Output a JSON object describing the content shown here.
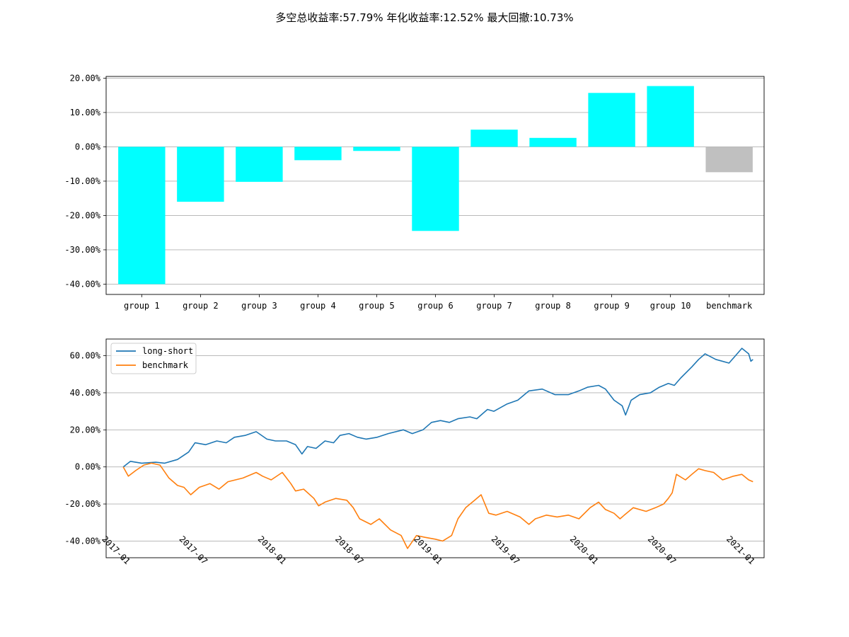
{
  "suptitle": "多空总收益率:57.79%    年化收益率:12.52%    最大回撤:10.73%",
  "chart_data": [
    {
      "type": "bar",
      "categories": [
        "group 1",
        "group 2",
        "group 3",
        "group 4",
        "group 5",
        "group 6",
        "group 7",
        "group 8",
        "group 9",
        "group 10",
        "benchmark"
      ],
      "values": [
        -40.0,
        -16.0,
        -10.2,
        -3.9,
        -1.2,
        -24.5,
        5.0,
        2.6,
        15.7,
        17.7,
        -7.4
      ],
      "colors": [
        "#00ffff",
        "#00ffff",
        "#00ffff",
        "#00ffff",
        "#00ffff",
        "#00ffff",
        "#00ffff",
        "#00ffff",
        "#00ffff",
        "#00ffff",
        "#c0c0c0"
      ],
      "ylim": [
        -43,
        20.5
      ],
      "yticks": [
        20,
        10,
        0,
        -10,
        -20,
        -30,
        -40
      ],
      "ytick_labels": [
        "20.00%",
        "10.00%",
        "0.00%",
        "-10.00%",
        "-20.00%",
        "-30.00%",
        "-40.00%"
      ],
      "grid": "y"
    },
    {
      "type": "line",
      "xlim": [
        "2016-11-24",
        "2021-02-10"
      ],
      "ylim": [
        -49,
        69
      ],
      "xticks": [
        "2017-01",
        "2017-07",
        "2018-01",
        "2018-07",
        "2019-01",
        "2019-07",
        "2020-01",
        "2020-07",
        "2021-01"
      ],
      "yticks": [
        60,
        40,
        20,
        0,
        -20,
        -40
      ],
      "ytick_labels": [
        "60.00%",
        "40.00%",
        "20.00%",
        "0.00%",
        "-20.00%",
        "-40.00%"
      ],
      "grid": "y",
      "legend": "upper-left",
      "series": [
        {
          "name": "long-short",
          "color": "#1f77b4",
          "points": [
            [
              "2017-01-03",
              0
            ],
            [
              "2017-01-20",
              3
            ],
            [
              "2017-02-15",
              2
            ],
            [
              "2017-03-20",
              2.5
            ],
            [
              "2017-04-10",
              2
            ],
            [
              "2017-05-10",
              4
            ],
            [
              "2017-06-05",
              8
            ],
            [
              "2017-06-20",
              13
            ],
            [
              "2017-07-15",
              12
            ],
            [
              "2017-08-10",
              14
            ],
            [
              "2017-09-01",
              13
            ],
            [
              "2017-09-20",
              16
            ],
            [
              "2017-10-15",
              17
            ],
            [
              "2017-11-10",
              19
            ],
            [
              "2017-12-05",
              15
            ],
            [
              "2017-12-25",
              14
            ],
            [
              "2018-01-20",
              14
            ],
            [
              "2018-02-10",
              12
            ],
            [
              "2018-02-25",
              7
            ],
            [
              "2018-03-10",
              11
            ],
            [
              "2018-03-30",
              10
            ],
            [
              "2018-04-20",
              14
            ],
            [
              "2018-05-10",
              13
            ],
            [
              "2018-05-25",
              17
            ],
            [
              "2018-06-15",
              18
            ],
            [
              "2018-07-05",
              16
            ],
            [
              "2018-07-25",
              15
            ],
            [
              "2018-08-20",
              16
            ],
            [
              "2018-09-15",
              18
            ],
            [
              "2018-10-20",
              20
            ],
            [
              "2018-11-10",
              18
            ],
            [
              "2018-12-05",
              20
            ],
            [
              "2018-12-25",
              24
            ],
            [
              "2019-01-15",
              25
            ],
            [
              "2019-02-05",
              24
            ],
            [
              "2019-02-25",
              26
            ],
            [
              "2019-03-25",
              27
            ],
            [
              "2019-04-10",
              26
            ],
            [
              "2019-05-05",
              31
            ],
            [
              "2019-05-20",
              30
            ],
            [
              "2019-06-20",
              34
            ],
            [
              "2019-07-15",
              36
            ],
            [
              "2019-08-10",
              41
            ],
            [
              "2019-09-10",
              42
            ],
            [
              "2019-10-10",
              39
            ],
            [
              "2019-11-10",
              39
            ],
            [
              "2019-12-05",
              41
            ],
            [
              "2019-12-25",
              43
            ],
            [
              "2020-01-20",
              44
            ],
            [
              "2020-02-05",
              42
            ],
            [
              "2020-02-25",
              36
            ],
            [
              "2020-03-15",
              33
            ],
            [
              "2020-03-23",
              28
            ],
            [
              "2020-04-05",
              36
            ],
            [
              "2020-04-25",
              39
            ],
            [
              "2020-05-20",
              40
            ],
            [
              "2020-06-10",
              43
            ],
            [
              "2020-07-01",
              45
            ],
            [
              "2020-07-15",
              44
            ],
            [
              "2020-07-30",
              48
            ],
            [
              "2020-08-25",
              54
            ],
            [
              "2020-09-10",
              58
            ],
            [
              "2020-09-25",
              61
            ],
            [
              "2020-10-20",
              58
            ],
            [
              "2020-11-20",
              56
            ],
            [
              "2020-12-05",
              60
            ],
            [
              "2020-12-20",
              64
            ],
            [
              "2021-01-05",
              61
            ],
            [
              "2021-01-10",
              57
            ],
            [
              "2021-01-15",
              58
            ]
          ]
        },
        {
          "name": "benchmark",
          "color": "#ff7f0e",
          "points": [
            [
              "2017-01-03",
              0
            ],
            [
              "2017-01-15",
              -5
            ],
            [
              "2017-02-01",
              -2
            ],
            [
              "2017-02-20",
              1
            ],
            [
              "2017-03-10",
              2
            ],
            [
              "2017-03-30",
              1
            ],
            [
              "2017-04-20",
              -6
            ],
            [
              "2017-05-10",
              -10
            ],
            [
              "2017-05-25",
              -11
            ],
            [
              "2017-06-10",
              -15
            ],
            [
              "2017-06-30",
              -11
            ],
            [
              "2017-07-25",
              -9
            ],
            [
              "2017-08-15",
              -12
            ],
            [
              "2017-09-05",
              -8
            ],
            [
              "2017-10-10",
              -6
            ],
            [
              "2017-11-10",
              -3
            ],
            [
              "2017-11-25",
              -5
            ],
            [
              "2017-12-15",
              -7
            ],
            [
              "2018-01-10",
              -3
            ],
            [
              "2018-01-30",
              -9
            ],
            [
              "2018-02-10",
              -13
            ],
            [
              "2018-03-01",
              -12
            ],
            [
              "2018-03-25",
              -17
            ],
            [
              "2018-04-05",
              -21
            ],
            [
              "2018-04-20",
              -19
            ],
            [
              "2018-05-15",
              -17
            ],
            [
              "2018-06-10",
              -18
            ],
            [
              "2018-06-25",
              -22
            ],
            [
              "2018-07-10",
              -28
            ],
            [
              "2018-08-05",
              -31
            ],
            [
              "2018-08-25",
              -28
            ],
            [
              "2018-09-20",
              -34
            ],
            [
              "2018-10-15",
              -37
            ],
            [
              "2018-10-30",
              -44
            ],
            [
              "2018-11-20",
              -37
            ],
            [
              "2018-12-10",
              -38
            ],
            [
              "2019-01-03",
              -39
            ],
            [
              "2019-01-20",
              -40
            ],
            [
              "2019-02-10",
              -37
            ],
            [
              "2019-02-25",
              -28
            ],
            [
              "2019-03-15",
              -22
            ],
            [
              "2019-04-05",
              -18
            ],
            [
              "2019-04-20",
              -15
            ],
            [
              "2019-05-08",
              -25
            ],
            [
              "2019-05-25",
              -26
            ],
            [
              "2019-06-20",
              -24
            ],
            [
              "2019-07-20",
              -27
            ],
            [
              "2019-08-10",
              -31
            ],
            [
              "2019-08-25",
              -28
            ],
            [
              "2019-09-20",
              -26
            ],
            [
              "2019-10-15",
              -27
            ],
            [
              "2019-11-10",
              -26
            ],
            [
              "2019-12-05",
              -28
            ],
            [
              "2019-12-31",
              -22
            ],
            [
              "2020-01-20",
              -19
            ],
            [
              "2020-02-05",
              -23
            ],
            [
              "2020-02-25",
              -25
            ],
            [
              "2020-03-10",
              -28
            ],
            [
              "2020-03-20",
              -26
            ],
            [
              "2020-04-10",
              -22
            ],
            [
              "2020-05-10",
              -24
            ],
            [
              "2020-06-01",
              -22
            ],
            [
              "2020-06-20",
              -20
            ],
            [
              "2020-07-01",
              -17
            ],
            [
              "2020-07-10",
              -14
            ],
            [
              "2020-07-20",
              -4
            ],
            [
              "2020-08-10",
              -7
            ],
            [
              "2020-08-25",
              -4
            ],
            [
              "2020-09-10",
              -1
            ],
            [
              "2020-09-25",
              -2
            ],
            [
              "2020-10-15",
              -3
            ],
            [
              "2020-11-05",
              -7
            ],
            [
              "2020-11-30",
              -5
            ],
            [
              "2020-12-20",
              -4
            ],
            [
              "2021-01-05",
              -7
            ],
            [
              "2021-01-15",
              -8
            ]
          ]
        }
      ]
    }
  ]
}
